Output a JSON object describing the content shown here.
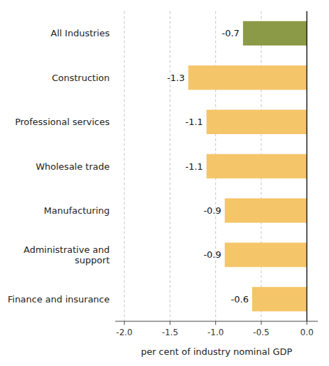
{
  "chart_data": {
    "type": "bar",
    "orientation": "horizontal",
    "categories": [
      "All Industries",
      "Construction",
      "Professional services",
      "Wholesale trade",
      "Manufacturing",
      "Administrative and\nsupport",
      "Finance and insurance"
    ],
    "values": [
      -0.7,
      -1.3,
      -1.1,
      -1.1,
      -0.9,
      -0.9,
      -0.6
    ],
    "colors": [
      "#8b9a46",
      "#f5c569",
      "#f5c569",
      "#f5c569",
      "#f5c569",
      "#f5c569",
      "#f5c569"
    ],
    "x_label": "per cent of industry nominal GDP",
    "xlim": [
      -2.1,
      0.12
    ],
    "xticks": [
      {
        "value": -2.0,
        "label": "-2.0"
      },
      -1.5,
      {
        "value": -1.0,
        "label": "-1.0"
      },
      -0.5,
      {
        "value": 0.0,
        "label": "0.0"
      }
    ],
    "grid": true,
    "data_labels": true
  }
}
